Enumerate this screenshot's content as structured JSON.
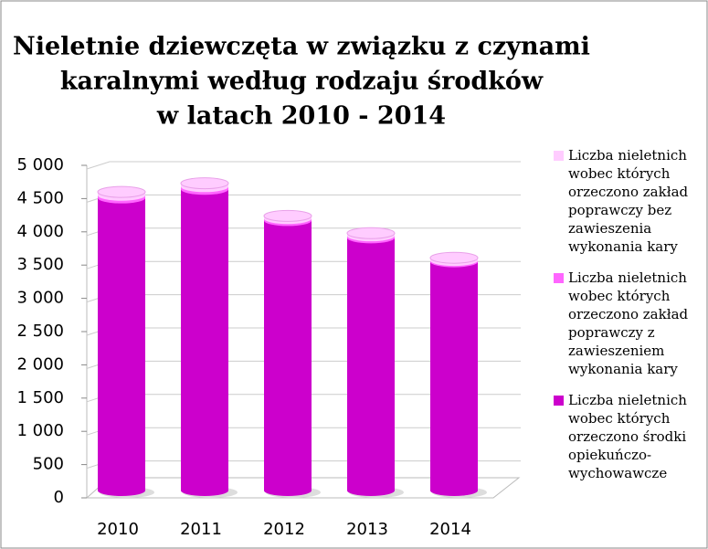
{
  "chart_data": {
    "type": "bar3d-stacked",
    "title": [
      "Nieletnie dziewczęta w związku z czynami",
      "karalnymi według rodzaju środków",
      "w latach 2010 - 2014"
    ],
    "categories": [
      "2010",
      "2011",
      "2012",
      "2013",
      "2014"
    ],
    "series": [
      {
        "name": "Liczba nieletnich wobec których orzeczono środki opiekuńczo-wychowawcze",
        "color": "#cc00cc",
        "values": [
          4400,
          4530,
          4060,
          3800,
          3440
        ]
      },
      {
        "name": "Liczba nieletnich wobec których orzeczono zakład poprawczy z zawieszeniem wykonania kary",
        "color": "#ff66ff",
        "values": [
          40,
          40,
          30,
          30,
          20
        ]
      },
      {
        "name": "Liczba nieletnich wobec których orzeczono zakład poprawczy bez zawieszenia wykonania kary",
        "color": "#ffccff",
        "values": [
          50,
          50,
          40,
          40,
          40
        ]
      }
    ],
    "ylim": [
      0,
      5000
    ],
    "yticks": [
      0,
      500,
      {
        "value": 1000,
        "label": "1 000"
      },
      {
        "value": 1500,
        "label": "1 500"
      },
      {
        "value": 2000,
        "label": "2 000"
      },
      {
        "value": 2500,
        "label": "2 500"
      },
      {
        "value": 3000,
        "label": "3 000"
      },
      {
        "value": 3500,
        "label": "3 500"
      },
      {
        "value": 4000,
        "label": "4 000"
      },
      {
        "value": 4500,
        "label": "4 500"
      },
      {
        "value": 5000,
        "label": "5 000"
      }
    ],
    "grid": true,
    "legend": "right"
  }
}
